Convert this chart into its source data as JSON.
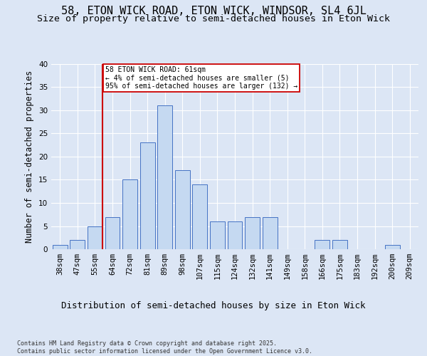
{
  "title": "58, ETON WICK ROAD, ETON WICK, WINDSOR, SL4 6JL",
  "subtitle": "Size of property relative to semi-detached houses in Eton Wick",
  "xlabel": "Distribution of semi-detached houses by size in Eton Wick",
  "ylabel": "Number of semi-detached properties",
  "categories": [
    "38sqm",
    "47sqm",
    "55sqm",
    "64sqm",
    "72sqm",
    "81sqm",
    "89sqm",
    "98sqm",
    "107sqm",
    "115sqm",
    "124sqm",
    "132sqm",
    "141sqm",
    "149sqm",
    "158sqm",
    "166sqm",
    "175sqm",
    "183sqm",
    "192sqm",
    "200sqm",
    "209sqm"
  ],
  "values": [
    1,
    2,
    5,
    7,
    15,
    23,
    31,
    17,
    14,
    6,
    6,
    7,
    7,
    0,
    0,
    2,
    2,
    0,
    0,
    1,
    0
  ],
  "bar_color": "#c5d9f1",
  "bar_edge_color": "#4472c4",
  "property_bin_index": 2,
  "annotation_text": "58 ETON WICK ROAD: 61sqm\n← 4% of semi-detached houses are smaller (5)\n95% of semi-detached houses are larger (132) →",
  "vline_color": "#cc0000",
  "annotation_box_color": "#cc0000",
  "background_color": "#dce6f5",
  "plot_background": "#dce6f5",
  "footer": "Contains HM Land Registry data © Crown copyright and database right 2025.\nContains public sector information licensed under the Open Government Licence v3.0.",
  "ylim": [
    0,
    40
  ],
  "title_fontsize": 11,
  "subtitle_fontsize": 9.5,
  "ylabel_fontsize": 8.5,
  "xlabel_fontsize": 9,
  "tick_fontsize": 7.5,
  "annotation_fontsize": 7,
  "footer_fontsize": 6
}
